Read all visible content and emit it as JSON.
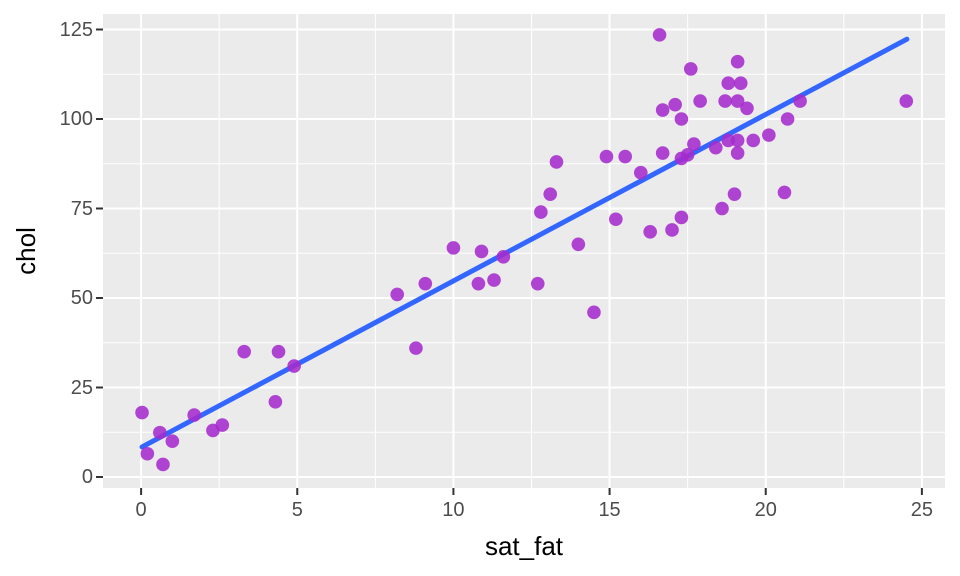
{
  "chart_data": {
    "type": "scatter",
    "title": "",
    "xlabel": "sat_fat",
    "ylabel": "chol",
    "x_tick_labels": [
      "0",
      "5",
      "10",
      "15",
      "20",
      "25"
    ],
    "y_tick_labels": [
      "0",
      "25",
      "50",
      "75",
      "100",
      "125"
    ],
    "x_ticks": [
      0,
      5,
      10,
      15,
      20,
      25
    ],
    "y_ticks": [
      0,
      25,
      50,
      75,
      100,
      125
    ],
    "x_minor_gridlines": [
      2.5,
      7.5,
      12.5,
      17.5,
      22.5
    ],
    "y_minor_gridlines": [
      12.5,
      37.5,
      62.5,
      87.5,
      112.5
    ],
    "xlim": [
      -1.22,
      25.74
    ],
    "ylim": [
      -3.07,
      129.33
    ],
    "grid": "on",
    "legend": "none",
    "points": [
      [
        0.03,
        18
      ],
      [
        0.2,
        6.5
      ],
      [
        0.6,
        12.4
      ],
      [
        0.7,
        3.5
      ],
      [
        1.0,
        10
      ],
      [
        1.7,
        17.3
      ],
      [
        2.3,
        13
      ],
      [
        2.6,
        14.5
      ],
      [
        3.3,
        35
      ],
      [
        4.3,
        21
      ],
      [
        4.4,
        35
      ],
      [
        4.9,
        31
      ],
      [
        8.2,
        51
      ],
      [
        8.8,
        36
      ],
      [
        9.1,
        54
      ],
      [
        10.0,
        64
      ],
      [
        10.8,
        54
      ],
      [
        10.9,
        63
      ],
      [
        11.3,
        55
      ],
      [
        11.6,
        61.5
      ],
      [
        12.7,
        54
      ],
      [
        12.8,
        74
      ],
      [
        13.1,
        79
      ],
      [
        13.3,
        88
      ],
      [
        14.0,
        65
      ],
      [
        14.5,
        46
      ],
      [
        14.9,
        89.5
      ],
      [
        15.2,
        72
      ],
      [
        15.5,
        89.5
      ],
      [
        16.0,
        85
      ],
      [
        16.3,
        68.5
      ],
      [
        16.6,
        123.5
      ],
      [
        16.7,
        102.5
      ],
      [
        16.7,
        90.5
      ],
      [
        17.0,
        69
      ],
      [
        17.1,
        104
      ],
      [
        17.3,
        100
      ],
      [
        17.3,
        89
      ],
      [
        17.3,
        72.5
      ],
      [
        17.5,
        90
      ],
      [
        17.6,
        114
      ],
      [
        17.7,
        93
      ],
      [
        17.9,
        105
      ],
      [
        18.4,
        92
      ],
      [
        18.6,
        75
      ],
      [
        18.7,
        105
      ],
      [
        18.8,
        94
      ],
      [
        18.8,
        110
      ],
      [
        19.0,
        79
      ],
      [
        19.1,
        94
      ],
      [
        19.1,
        105
      ],
      [
        19.1,
        116
      ],
      [
        19.1,
        90.5
      ],
      [
        19.2,
        110
      ],
      [
        19.4,
        103
      ],
      [
        19.6,
        94
      ],
      [
        20.1,
        95.5
      ],
      [
        20.6,
        79.5
      ],
      [
        20.7,
        100
      ],
      [
        21.1,
        105
      ],
      [
        24.5,
        105
      ]
    ],
    "trend_line": {
      "x1": 0.03,
      "y1": 8.4,
      "x2": 24.52,
      "y2": 122.3
    },
    "colors": {
      "panel_bg": "#EBEBEB",
      "grid": "#FFFFFF",
      "point": "#A52BCD",
      "trend_line": "#3366FF",
      "tick_mark": "#333333",
      "tick_label": "#4D4D4D",
      "axis_title": "#000000"
    }
  }
}
